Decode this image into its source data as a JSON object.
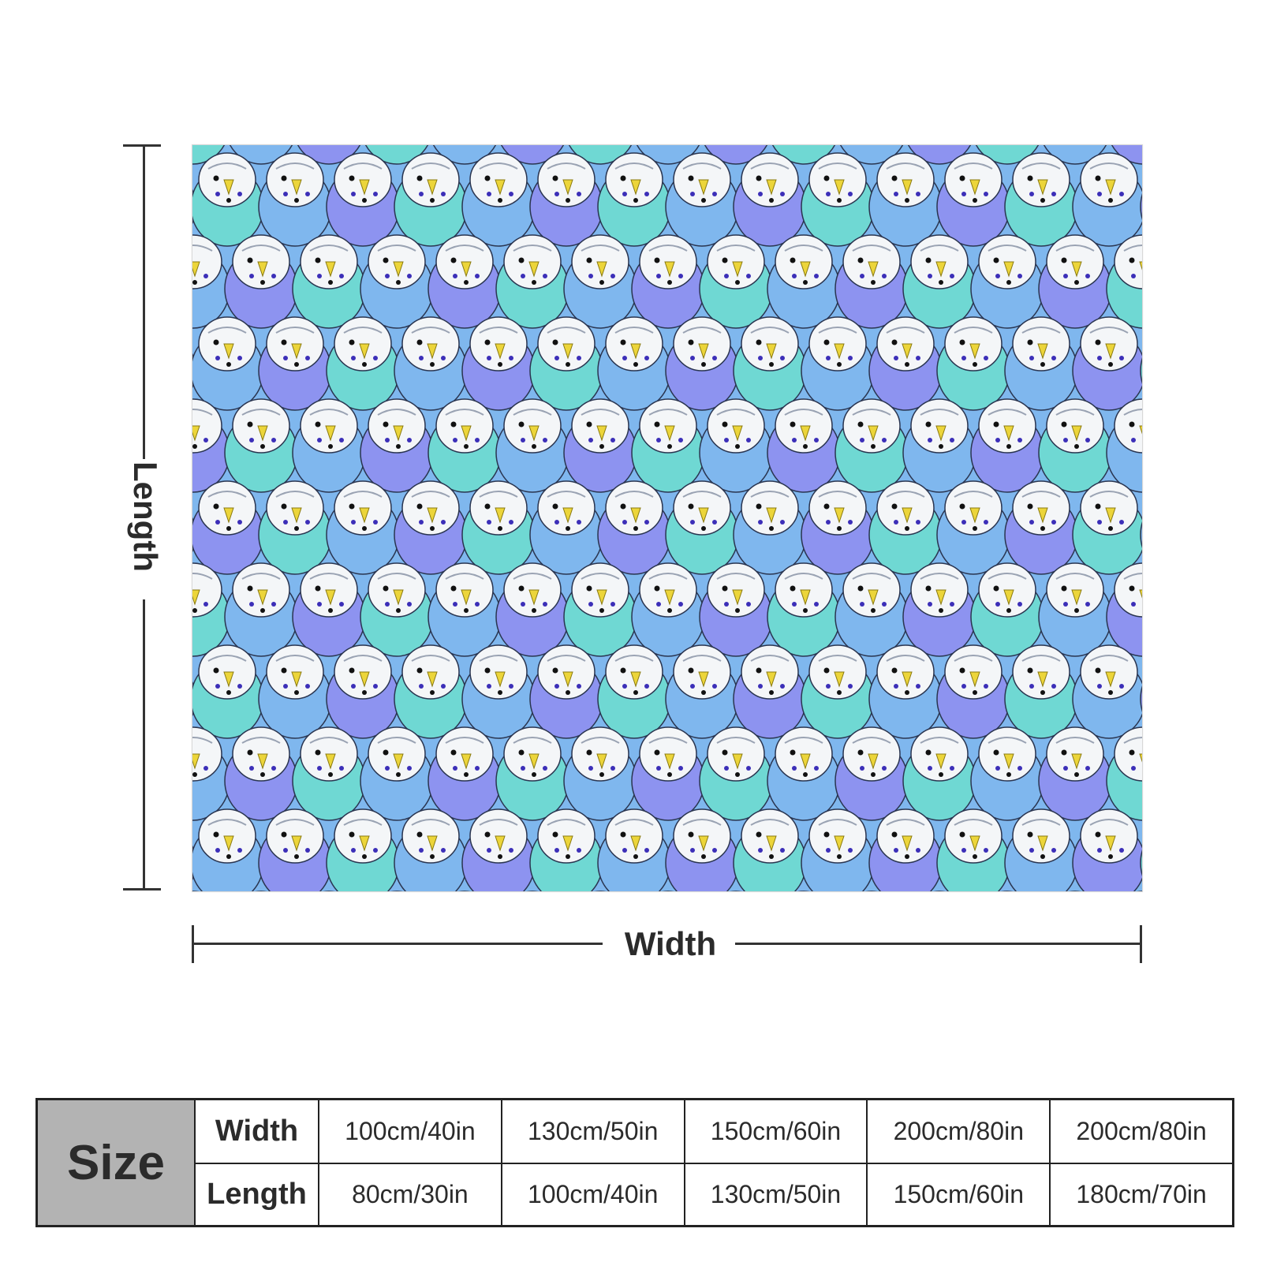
{
  "product": {
    "pattern": "budgie-parakeet-pattern",
    "colors": {
      "teal": "#6fd8d3",
      "blue": "#7fb7ee",
      "violet": "#8d93f0",
      "white": "#f4f6f8",
      "beak": "#ecd53a",
      "spot": "#3c2fb8",
      "outline": "#2a3550"
    }
  },
  "dimensions": {
    "length_label": "Length",
    "width_label": "Width"
  },
  "size_table": {
    "title": "Size",
    "width_label": "Width",
    "length_label": "Length",
    "widths": [
      "100cm/40in",
      "130cm/50in",
      "150cm/60in",
      "200cm/80in",
      "200cm/80in"
    ],
    "lengths": [
      "80cm/30in",
      "100cm/40in",
      "130cm/50in",
      "150cm/60in",
      "180cm/70in"
    ]
  }
}
